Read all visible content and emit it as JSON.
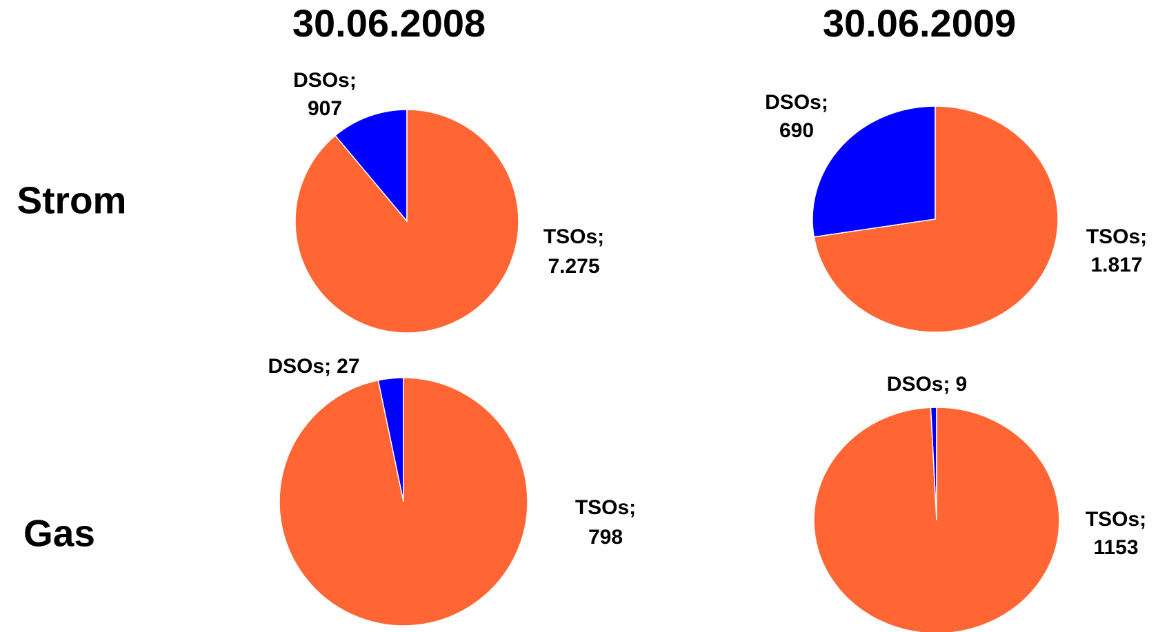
{
  "columns": [
    "30.06.2008",
    "30.06.2009"
  ],
  "rows": [
    "Strom",
    "Gas"
  ],
  "label_separator": ";",
  "chart_data": [
    {
      "type": "pie",
      "categories": [
        "DSOs",
        "TSOs"
      ],
      "values": [
        907,
        7275
      ],
      "value_labels": [
        "907",
        "7.275"
      ],
      "colors": [
        "#0000ff",
        "#ff6633"
      ]
    },
    {
      "type": "pie",
      "categories": [
        "DSOs",
        "TSOs"
      ],
      "values": [
        690,
        1817
      ],
      "value_labels": [
        "690",
        "1.817"
      ],
      "colors": [
        "#0000ff",
        "#ff6633"
      ]
    },
    {
      "type": "pie",
      "categories": [
        "DSOs",
        "TSOs"
      ],
      "values": [
        27,
        798
      ],
      "value_labels": [
        "27",
        "798"
      ],
      "colors": [
        "#0000ff",
        "#ff6633"
      ]
    },
    {
      "type": "pie",
      "categories": [
        "DSOs",
        "TSOs"
      ],
      "values": [
        9,
        1153
      ],
      "value_labels": [
        "9",
        "1153"
      ],
      "colors": [
        "#0000ff",
        "#ff6633"
      ]
    }
  ]
}
